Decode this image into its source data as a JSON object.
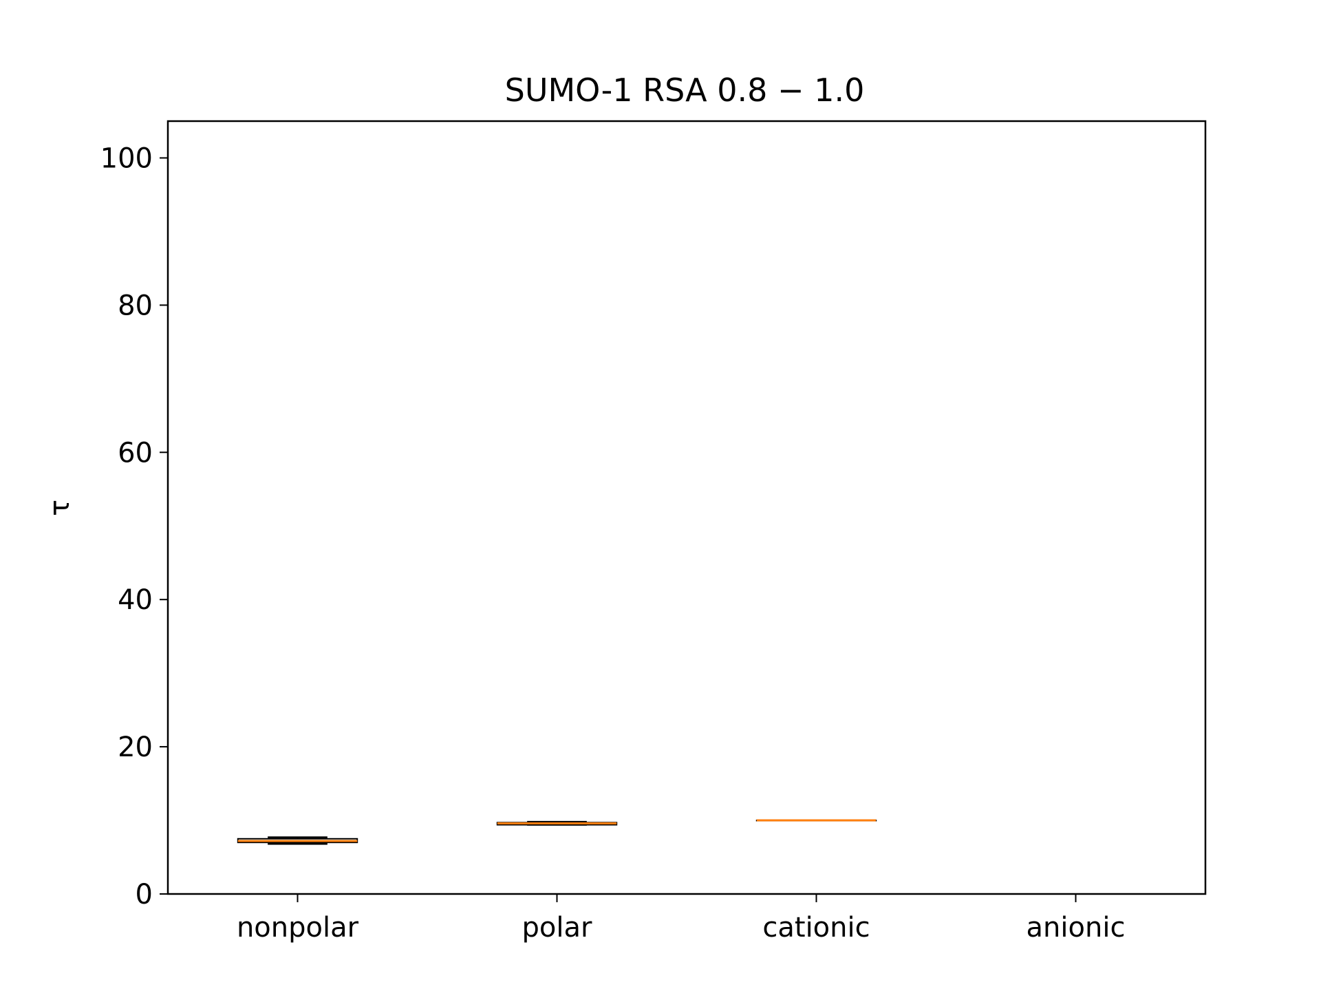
{
  "chart_data": {
    "type": "box",
    "title": "SUMO-1 RSA 0.8 − 1.0",
    "xlabel": "",
    "ylabel": "τ",
    "ylim": [
      0,
      105
    ],
    "yticks": [
      0,
      20,
      40,
      60,
      80,
      100
    ],
    "grid": false,
    "categories": [
      "nonpolar",
      "polar",
      "cationic",
      "anionic"
    ],
    "boxes": [
      {
        "category": "nonpolar",
        "whislo": 6.8,
        "q1": 7.0,
        "median": 7.2,
        "q3": 7.5,
        "whishi": 7.7
      },
      {
        "category": "polar",
        "whislo": 9.4,
        "q1": 9.4,
        "median": 9.6,
        "q3": 9.7,
        "whishi": 9.8
      },
      {
        "category": "cationic",
        "whislo": 10.0,
        "q1": 10.0,
        "median": 10.0,
        "q3": 10.0,
        "whishi": 10.0
      },
      {
        "category": "anionic",
        "whislo": null,
        "q1": null,
        "median": null,
        "q3": null,
        "whishi": null
      }
    ],
    "colors": {
      "box": "#000000",
      "median": "#ff7f0e",
      "axes": "#000000"
    }
  }
}
